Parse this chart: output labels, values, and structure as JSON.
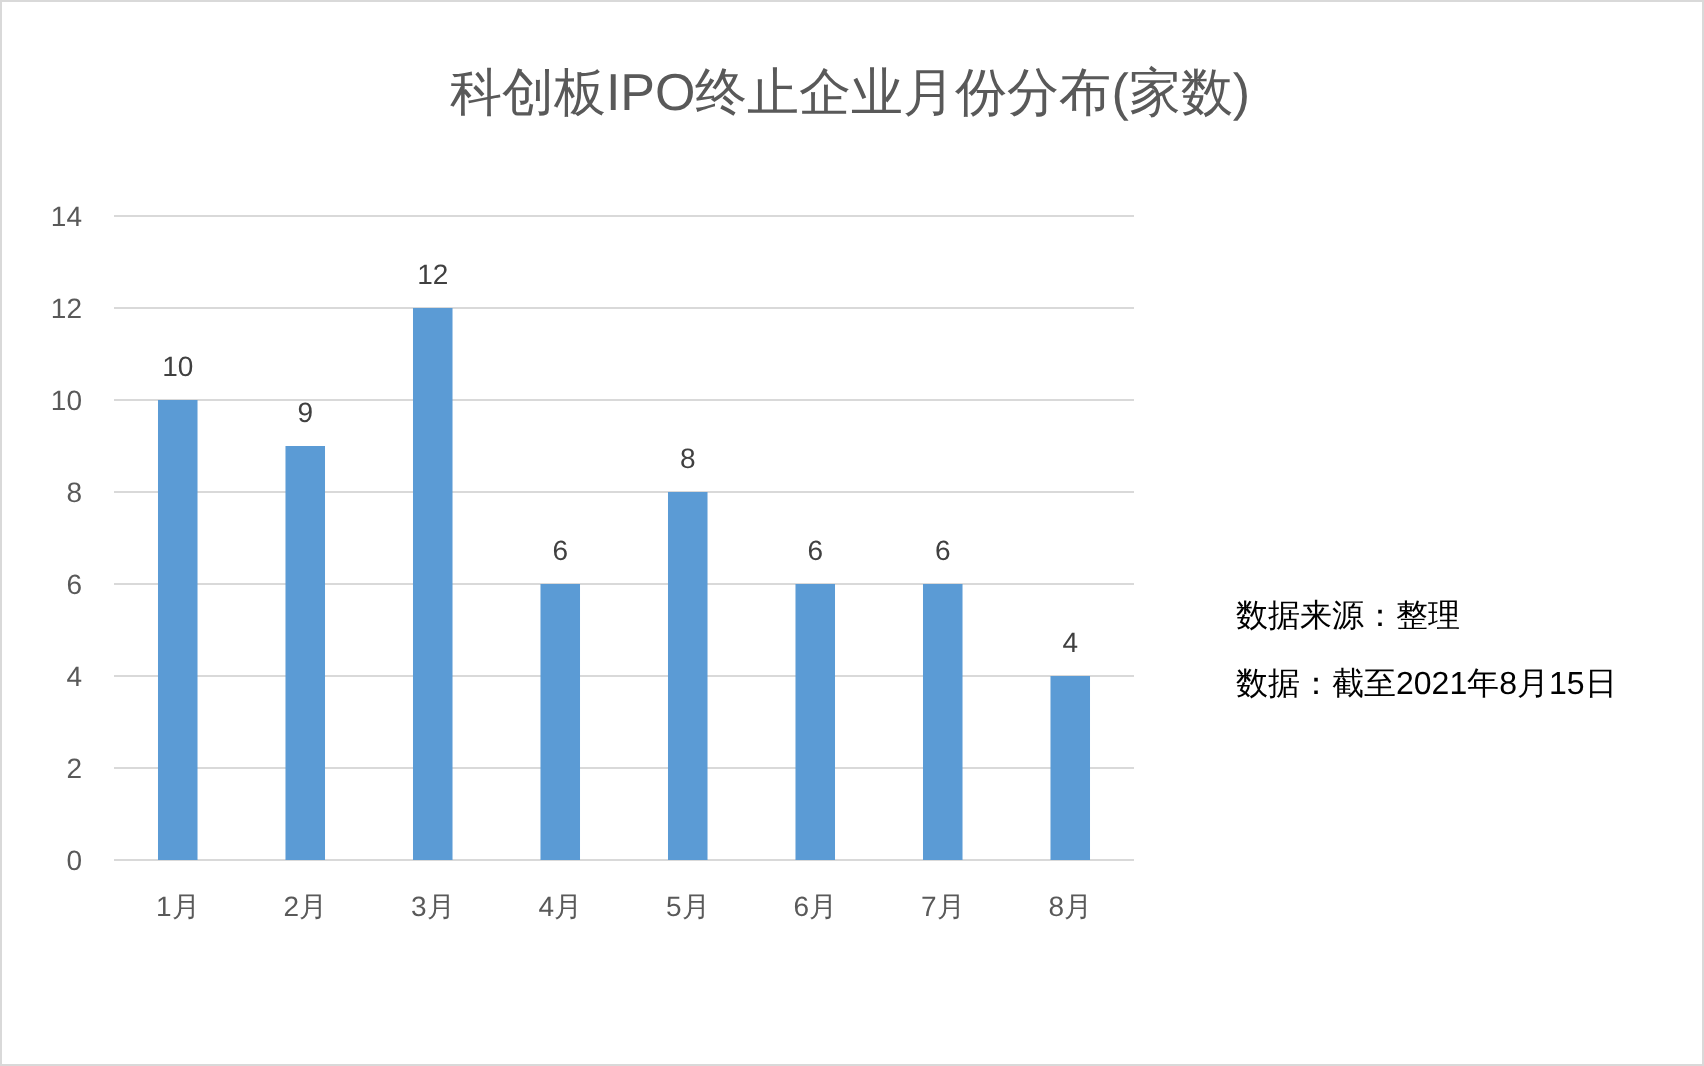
{
  "chart_data": {
    "type": "bar",
    "title": "科创板IPO终止企业月份分布(家数)",
    "categories": [
      "1月",
      "2月",
      "3月",
      "4月",
      "5月",
      "6月",
      "7月",
      "8月"
    ],
    "values": [
      10,
      9,
      12,
      6,
      8,
      6,
      6,
      4
    ],
    "color": "#5b9bd5",
    "ylim": [
      0,
      14
    ],
    "yticks": [
      0,
      2,
      4,
      6,
      8,
      10,
      12,
      14
    ],
    "grid": "y",
    "data_labels": true,
    "annotations": [
      "数据来源：整理",
      "数据：截至2021年8月15日"
    ]
  }
}
